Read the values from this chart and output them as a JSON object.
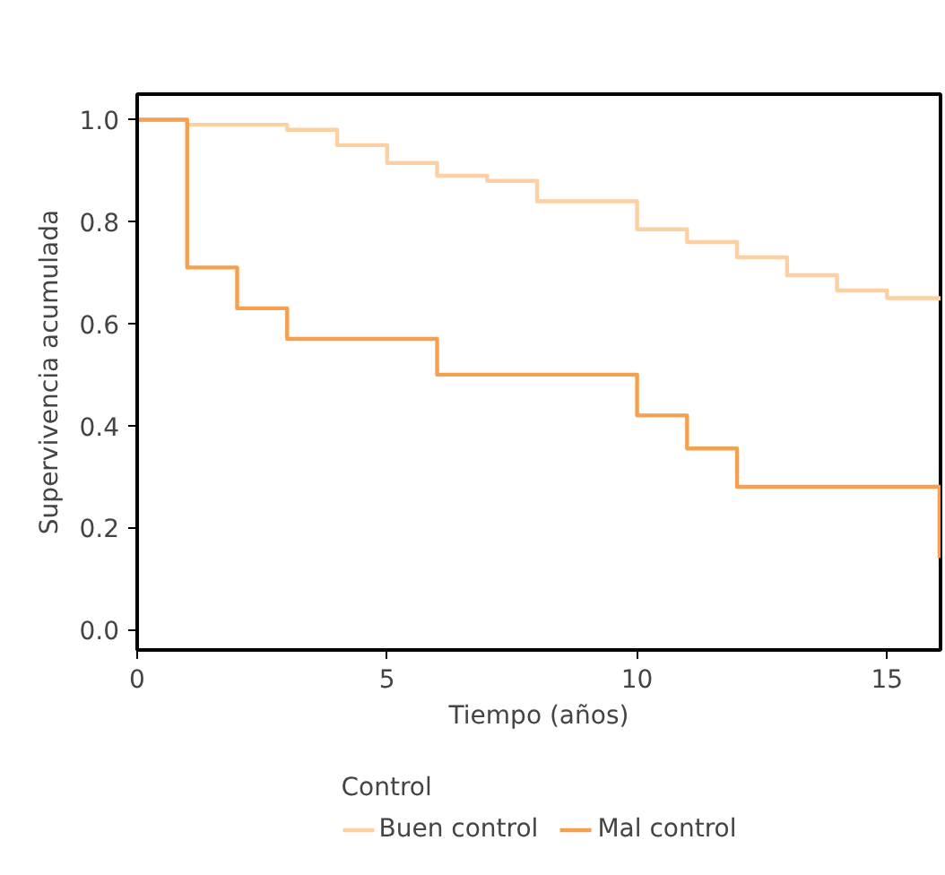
{
  "chart_data": {
    "type": "step",
    "xlabel": "Tiempo (años)",
    "ylabel": "Supervivencia acumulada",
    "legend_title": "Control",
    "legend": "bottom",
    "grid": false,
    "xlim": [
      0,
      16.07
    ],
    "xticks": [
      0,
      5,
      10,
      15
    ],
    "ylim": [
      -0.04,
      1.05
    ],
    "yticks": [
      {
        "value": 0,
        "label": "0.0"
      },
      0.2,
      0.4,
      0.6,
      0.8,
      {
        "value": 1,
        "label": "1.0"
      }
    ],
    "series": [
      {
        "name": "Buen control",
        "color": "#fdd0a2",
        "x": [
          0,
          1,
          3,
          4,
          5,
          6,
          7,
          8,
          10,
          11,
          12,
          13,
          14,
          15,
          16.05
        ],
        "values": [
          1,
          0.99,
          0.98,
          0.95,
          0.915,
          0.89,
          0.88,
          0.84,
          0.785,
          0.76,
          0.73,
          0.695,
          0.665,
          0.65,
          0.645
        ]
      },
      {
        "name": "Mal control",
        "color": "#f5a04f",
        "x": [
          0,
          1,
          2,
          3,
          6,
          10,
          11,
          12,
          16.05
        ],
        "values": [
          1,
          0.71,
          0.63,
          0.57,
          0.5,
          0.42,
          0.355,
          0.28,
          0.14
        ]
      }
    ]
  }
}
